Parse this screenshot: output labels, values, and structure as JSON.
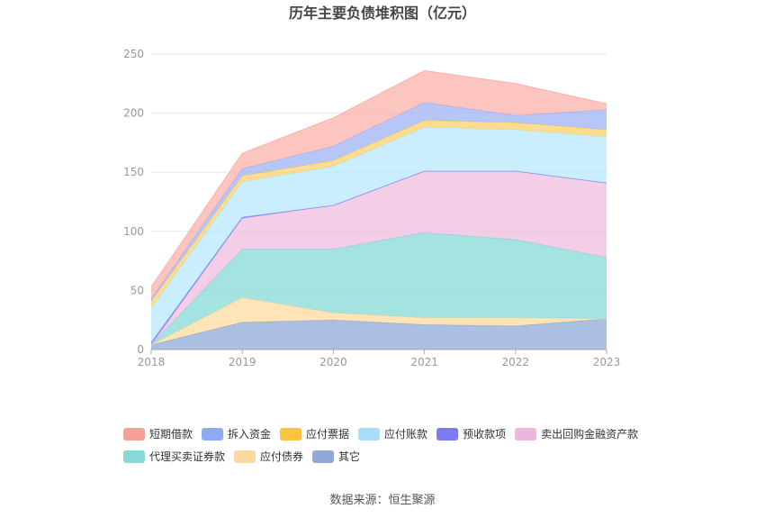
{
  "chart_data": {
    "type": "area",
    "stacked": true,
    "title": "历年主要负债堆积图（亿元）",
    "x": [
      "2018",
      "2019",
      "2020",
      "2021",
      "2022",
      "2023"
    ],
    "ylim": [
      0,
      250
    ],
    "yticks": [
      0,
      50,
      100,
      150,
      200,
      250
    ],
    "grid": true,
    "legend_position": "bottom",
    "series": [
      {
        "name": "其它",
        "color": "#8fa9d8",
        "values": [
          4,
          23,
          25,
          21,
          20,
          26
        ]
      },
      {
        "name": "应付债券",
        "color": "#ffdba0",
        "values": [
          0,
          21,
          6,
          6,
          7,
          0
        ]
      },
      {
        "name": "代理买卖证券款",
        "color": "#86d9d6",
        "values": [
          0,
          41,
          54,
          72,
          66,
          52
        ]
      },
      {
        "name": "卖出回购金融资产款",
        "color": "#f0bedf",
        "values": [
          0,
          26,
          37,
          52,
          58,
          63
        ]
      },
      {
        "name": "预收款项",
        "color": "#7b7ff0",
        "values": [
          2,
          1,
          0,
          0,
          0,
          0
        ]
      },
      {
        "name": "应付账款",
        "color": "#b8e8fc",
        "values": [
          29,
          30,
          33,
          37,
          35,
          39
        ]
      },
      {
        "name": "应付票据",
        "color": "#fcd06a",
        "values": [
          6,
          5,
          5,
          6,
          6,
          6
        ]
      },
      {
        "name": "拆入资金",
        "color": "#9db3f7",
        "values": [
          2,
          6,
          12,
          15,
          6,
          17
        ]
      },
      {
        "name": "短期借款",
        "color": "#fbb1ab",
        "values": [
          10,
          13,
          24,
          27,
          27,
          5
        ]
      }
    ],
    "legend_order": [
      "短期借款",
      "拆入资金",
      "应付票据",
      "应付账款",
      "预收款项",
      "卖出回购金融资产款",
      "代理买卖证券款",
      "应付债券",
      "其它"
    ],
    "legend_colors": {
      "短期借款": "#f7a098",
      "拆入资金": "#8ea9f6",
      "应付票据": "#fcc341",
      "应付账款": "#a9dcf7",
      "预收款项": "#7c7cf0",
      "卖出回购金融资产款": "#ebb7dc",
      "代理买卖证券款": "#86d9d6",
      "应付债券": "#fdd8a0",
      "其它": "#8fa9d8"
    }
  },
  "source_text": "数据来源：恒生聚源"
}
